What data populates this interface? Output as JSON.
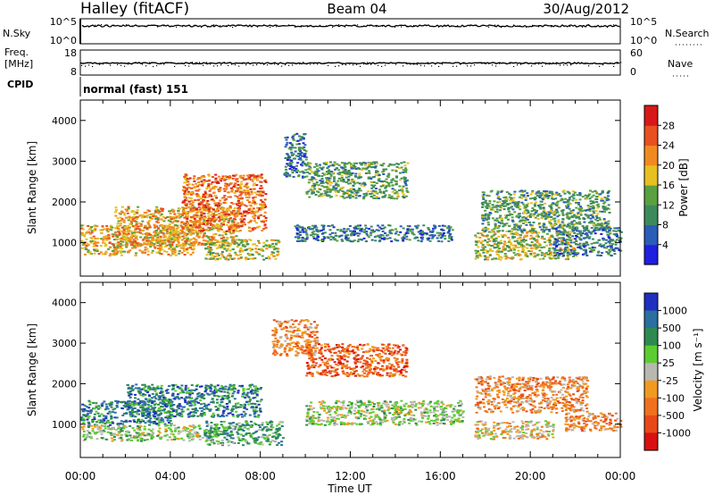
{
  "header": {
    "station": "Halley (fitACF)",
    "beam": "Beam 04",
    "date": "30/Aug/2012"
  },
  "top_strip": {
    "left_label": "N.Sky",
    "left_ticks": [
      "10^5",
      "10^0"
    ],
    "right_label": "N.Search",
    "right_ticks": [
      "10^5",
      "10^0"
    ]
  },
  "freq_strip": {
    "left_label_1": "Freq.",
    "left_label_2": "[MHz]",
    "left_ticks": [
      "18",
      "8"
    ],
    "right_label": "Nave",
    "right_ticks": [
      "60",
      "0"
    ]
  },
  "cpid": {
    "label": "CPID",
    "value": "normal (fast) 151"
  },
  "x_axis": {
    "label": "Time UT",
    "ticks": [
      "00:00",
      "04:00",
      "08:00",
      "12:00",
      "16:00",
      "20:00",
      "00:00"
    ]
  },
  "colors": {
    "power": [
      "#1f1fe0",
      "#2a5cb8",
      "#3c8a5c",
      "#5aa040",
      "#e6c020",
      "#f08a20",
      "#e85020",
      "#d81818"
    ],
    "velocity": [
      "#1f2fc0",
      "#2a6fa0",
      "#2e8a50",
      "#5ccd30",
      "#b8b8b0",
      "#f09a20",
      "#f07020",
      "#e84818",
      "#d81010"
    ]
  },
  "chart_data": [
    {
      "type": "heatmap",
      "title": "Power",
      "xlabel": "Time UT",
      "ylabel": "Slant Range [km]",
      "x_unit": "hours UT",
      "xlim": [
        0,
        24
      ],
      "ylim": [
        180,
        4500
      ],
      "yticks": [
        "1000",
        "2000",
        "3000",
        "4000"
      ],
      "colorbar": {
        "label": "Power [dB]",
        "ticks": [
          "4",
          "8",
          "12",
          "16",
          "20",
          "24",
          "28"
        ],
        "range": [
          0,
          32
        ]
      },
      "regions": [
        {
          "t": [
            0.0,
            5.0
          ],
          "r": [
            700,
            1450
          ],
          "level": 20
        },
        {
          "t": [
            1.5,
            7.0
          ],
          "r": [
            950,
            1900
          ],
          "level": 22
        },
        {
          "t": [
            4.5,
            8.2
          ],
          "r": [
            1300,
            2700
          ],
          "level": 24
        },
        {
          "t": [
            5.5,
            8.8
          ],
          "r": [
            600,
            1100
          ],
          "level": 18
        },
        {
          "t": [
            9.0,
            10.0
          ],
          "r": [
            2600,
            3700
          ],
          "level": 10
        },
        {
          "t": [
            10.0,
            14.5
          ],
          "r": [
            2100,
            3000
          ],
          "level": 14
        },
        {
          "t": [
            9.5,
            16.5
          ],
          "r": [
            1050,
            1450
          ],
          "level": 8
        },
        {
          "t": [
            17.5,
            22.0
          ],
          "r": [
            600,
            1300
          ],
          "level": 16
        },
        {
          "t": [
            17.8,
            23.5
          ],
          "r": [
            1300,
            2300
          ],
          "level": 14
        },
        {
          "t": [
            21.0,
            24.0
          ],
          "r": [
            700,
            1400
          ],
          "level": 10
        }
      ]
    },
    {
      "type": "heatmap",
      "title": "Velocity",
      "xlabel": "Time UT",
      "ylabel": "Slant Range [km]",
      "x_unit": "hours UT",
      "xlim": [
        0,
        24
      ],
      "ylim": [
        180,
        4500
      ],
      "yticks": [
        "1000",
        "2000",
        "3000",
        "4000"
      ],
      "colorbar": {
        "label": "Velocity [m s⁻¹]",
        "ticks": [
          "1000",
          "500",
          "100",
          "25",
          "-25",
          "-100",
          "-500",
          "-1000"
        ]
      },
      "regions": [
        {
          "t": [
            0.0,
            4.0
          ],
          "r": [
            1000,
            1600
          ],
          "level": 2
        },
        {
          "t": [
            0.0,
            6.0
          ],
          "r": [
            600,
            1000
          ],
          "level": 4
        },
        {
          "t": [
            2.0,
            8.0
          ],
          "r": [
            1200,
            2000
          ],
          "level": 2
        },
        {
          "t": [
            5.5,
            9.0
          ],
          "r": [
            500,
            1100
          ],
          "level": 3
        },
        {
          "t": [
            8.5,
            10.5
          ],
          "r": [
            2700,
            3600
          ],
          "level": 6
        },
        {
          "t": [
            10.0,
            14.5
          ],
          "r": [
            2200,
            3000
          ],
          "level": 7
        },
        {
          "t": [
            10.0,
            17.0
          ],
          "r": [
            1000,
            1600
          ],
          "level": 4
        },
        {
          "t": [
            17.5,
            22.5
          ],
          "r": [
            1300,
            2200
          ],
          "level": 6
        },
        {
          "t": [
            17.5,
            21.0
          ],
          "r": [
            650,
            1100
          ],
          "level": 5
        },
        {
          "t": [
            21.5,
            24.0
          ],
          "r": [
            850,
            1300
          ],
          "level": 6
        }
      ]
    }
  ]
}
